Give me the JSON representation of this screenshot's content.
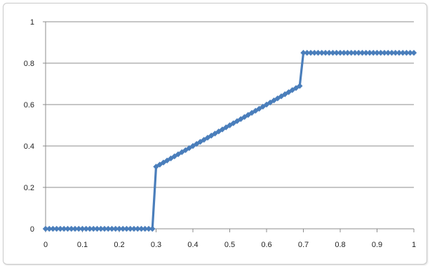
{
  "chart_data": {
    "type": "line",
    "title": "",
    "xlabel": "",
    "ylabel": "",
    "xlim": [
      0,
      1
    ],
    "ylim": [
      0,
      1
    ],
    "x_ticks": [
      "0",
      "0.1",
      "0.2",
      "0.3",
      "0.4",
      "0.5",
      "0.6",
      "0.7",
      "0.8",
      "0.9",
      "1"
    ],
    "y_ticks": [
      "0",
      "0.2",
      "0.4",
      "0.6",
      "0.8",
      "1"
    ],
    "grid": "horizontal",
    "legend": "none",
    "marker": "diamond",
    "series": [
      {
        "color": "#4a7ebb",
        "x": [
          0,
          0.01,
          0.02,
          0.03,
          0.04,
          0.05,
          0.06,
          0.07,
          0.08,
          0.09,
          0.1,
          0.11,
          0.12,
          0.13,
          0.14,
          0.15,
          0.16,
          0.17,
          0.18,
          0.19,
          0.2,
          0.21,
          0.22,
          0.23,
          0.24,
          0.25,
          0.26,
          0.27,
          0.28,
          0.29,
          0.3,
          0.31,
          0.32,
          0.33,
          0.34,
          0.35,
          0.36,
          0.37,
          0.38,
          0.39,
          0.4,
          0.41,
          0.42,
          0.43,
          0.44,
          0.45,
          0.46,
          0.47,
          0.48,
          0.49,
          0.5,
          0.51,
          0.52,
          0.53,
          0.54,
          0.55,
          0.56,
          0.57,
          0.58,
          0.59,
          0.6,
          0.61,
          0.62,
          0.63,
          0.64,
          0.65,
          0.66,
          0.67,
          0.68,
          0.69,
          0.7,
          0.71,
          0.72,
          0.73,
          0.74,
          0.75,
          0.76,
          0.77,
          0.78,
          0.79,
          0.8,
          0.81,
          0.82,
          0.83,
          0.84,
          0.85,
          0.86,
          0.87,
          0.88,
          0.89,
          0.9,
          0.91,
          0.92,
          0.93,
          0.94,
          0.95,
          0.96,
          0.97,
          0.98,
          0.99,
          1
        ],
        "y": [
          0,
          0,
          0,
          0,
          0,
          0,
          0,
          0,
          0,
          0,
          0,
          0,
          0,
          0,
          0,
          0,
          0,
          0,
          0,
          0,
          0,
          0,
          0,
          0,
          0,
          0,
          0,
          0,
          0,
          0,
          0.3,
          0.31,
          0.32,
          0.33,
          0.34,
          0.35,
          0.36,
          0.37,
          0.38,
          0.39,
          0.4,
          0.41,
          0.42,
          0.43,
          0.44,
          0.45,
          0.46,
          0.47,
          0.48,
          0.49,
          0.5,
          0.51,
          0.52,
          0.53,
          0.54,
          0.55,
          0.56,
          0.57,
          0.58,
          0.59,
          0.6,
          0.61,
          0.62,
          0.63,
          0.64,
          0.65,
          0.66,
          0.67,
          0.68,
          0.69,
          0.85,
          0.85,
          0.85,
          0.85,
          0.85,
          0.85,
          0.85,
          0.85,
          0.85,
          0.85,
          0.85,
          0.85,
          0.85,
          0.85,
          0.85,
          0.85,
          0.85,
          0.85,
          0.85,
          0.85,
          0.85,
          0.85,
          0.85,
          0.85,
          0.85,
          0.85,
          0.85,
          0.85,
          0.85,
          0.85,
          0.85
        ]
      }
    ]
  },
  "colors": {
    "series": "#4a7ebb",
    "gridline": "#8c8c8c",
    "axis": "#8c8c8c",
    "frame_border": "#c9c9c9"
  }
}
